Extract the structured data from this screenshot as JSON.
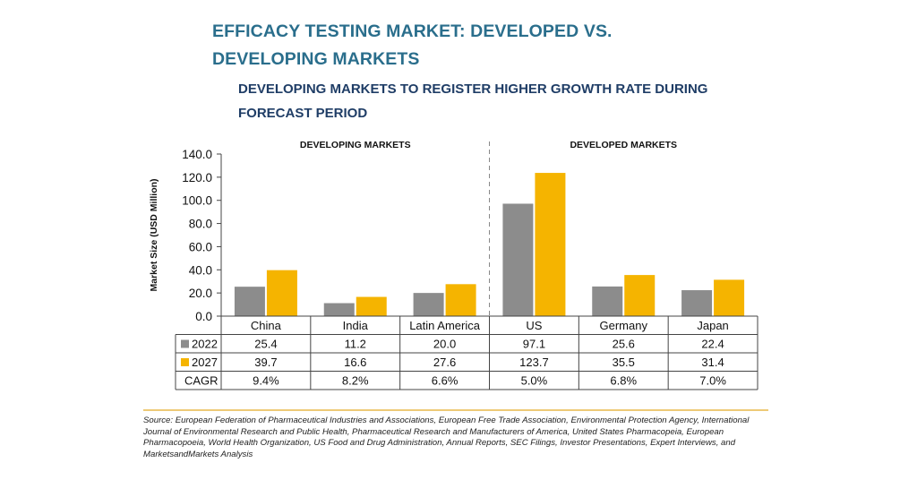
{
  "title": "EFFICACY TESTING MARKET: DEVELOPED VS. DEVELOPING MARKETS",
  "subtitle": "DEVELOPING MARKETS TO REGISTER HIGHER GROWTH RATE DURING FORECAST PERIOD",
  "source": "Source: European Federation of Pharmaceutical Industries and Associations, European Free Trade Association, Environmental Protection Agency, International Journal of Environmental Research and Public Health, Pharmaceutical Research and Manufacturers of America, United States Pharmacopeia, European Pharmacopoeia, World Health Organization, US Food and Drug Administration, Annual Reports, SEC Filings, Investor Presentations, Expert Interviews, and MarketsandMarkets Analysis",
  "colors": {
    "series_2022": "#8c8c8c",
    "series_2027": "#f5b400",
    "title": "#2a6e8c",
    "subtitle": "#1f3d66",
    "rule": "#e8b84a"
  },
  "chart_data": {
    "type": "bar",
    "ylabel": "Market Size (USD Million)",
    "ylim": [
      0,
      140
    ],
    "yticks": [
      "0.0",
      "20.0",
      "40.0",
      "60.0",
      "80.0",
      "100.0",
      "120.0",
      "140.0"
    ],
    "categories": [
      "China",
      "India",
      "Latin America",
      "US",
      "Germany",
      "Japan"
    ],
    "groups": [
      {
        "label": "DEVELOPING MARKETS",
        "categories": [
          "China",
          "India",
          "Latin America"
        ]
      },
      {
        "label": "DEVELOPED MARKETS",
        "categories": [
          "US",
          "Germany",
          "Japan"
        ]
      }
    ],
    "series": [
      {
        "name": "2022",
        "values": [
          25.4,
          11.2,
          20.0,
          97.1,
          25.6,
          22.4
        ],
        "labels": [
          "25.4",
          "11.2",
          "20.0",
          "97.1",
          "25.6",
          "22.4"
        ]
      },
      {
        "name": "2027",
        "values": [
          39.7,
          16.6,
          27.6,
          123.7,
          35.5,
          31.4
        ],
        "labels": [
          "39.7",
          "16.6",
          "27.6",
          "123.7",
          "35.5",
          "31.4"
        ]
      }
    ],
    "cagr": {
      "label": "CAGR",
      "values": [
        "9.4%",
        "8.2%",
        "6.6%",
        "5.0%",
        "6.8%",
        "7.0%"
      ]
    },
    "grid": false,
    "legend": "table"
  }
}
